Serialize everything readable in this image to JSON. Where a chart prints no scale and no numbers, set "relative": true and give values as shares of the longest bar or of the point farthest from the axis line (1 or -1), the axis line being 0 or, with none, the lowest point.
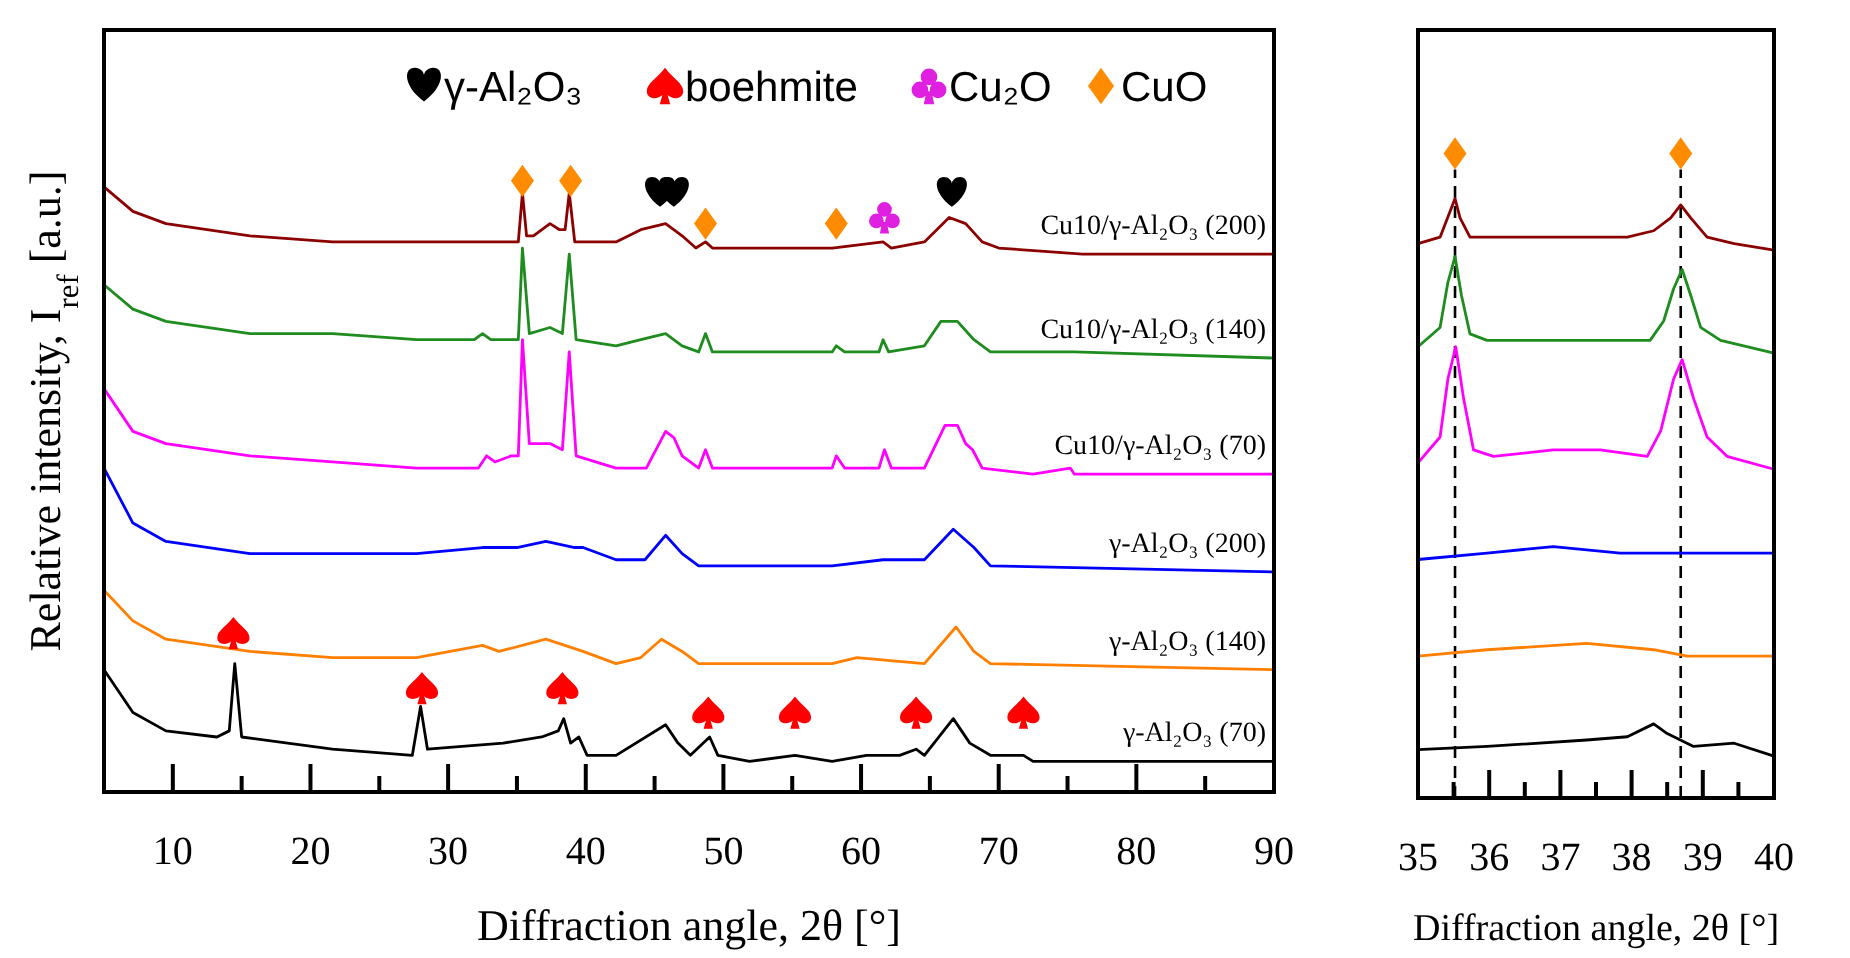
{
  "chart_data": [
    {
      "type": "line",
      "relative": true,
      "xlim": [
        5,
        90
      ],
      "xticks": [
        10,
        {
          "value": 15,
          "label": null
        },
        20,
        {
          "value": 25,
          "label": null
        },
        30,
        {
          "value": 35,
          "label": null
        },
        40,
        {
          "value": 45,
          "label": null
        },
        50,
        {
          "value": 55,
          "label": null
        },
        60,
        {
          "value": 65,
          "label": null
        },
        70,
        {
          "value": 75,
          "label": null
        },
        80,
        {
          "value": 85,
          "label": null
        },
        90
      ],
      "xlabel": "Diffraction angle,  2θ [°]",
      "ylabel": "Relative intensity, I$_{ref}$ [a.u.]",
      "legend": "top right",
      "grid": false,
      "series": [
        {
          "name": "Cu10/γ-Al₂O₃ (200)",
          "color": "#8b0000",
          "x": [
            5,
            7.1,
            9.5,
            15.6,
            21.6,
            27.7,
            32.5,
            34.6,
            35.1,
            35.4,
            35.7,
            36.2,
            37.4,
            38.1,
            38.5,
            38.8,
            39.2,
            42.2,
            44,
            45.8,
            47,
            48,
            48.7,
            49.2,
            57.9,
            61.6,
            62.2,
            64.6,
            66.4,
            67.6,
            68.8,
            70,
            76.1,
            90
          ],
          "values": [
            0.99,
            0.95,
            0.93,
            0.91,
            0.9,
            0.9,
            0.9,
            0.9,
            0.9,
            0.98,
            0.91,
            0.91,
            0.93,
            0.92,
            0.92,
            0.98,
            0.9,
            0.9,
            0.92,
            0.93,
            0.91,
            0.89,
            0.9,
            0.89,
            0.89,
            0.9,
            0.89,
            0.9,
            0.94,
            0.93,
            0.9,
            0.89,
            0.88,
            0.88
          ]
        },
        {
          "name": "Cu10/γ-Al₂O₃ (140)",
          "color": "#1e8c1e",
          "x": [
            5,
            7.1,
            9.5,
            15.6,
            21.6,
            27.7,
            31.9,
            32.5,
            33.1,
            34.6,
            35.1,
            35.4,
            35.9,
            37.4,
            38.3,
            38.8,
            39.3,
            42.2,
            44,
            45.8,
            47,
            48.2,
            48.7,
            49.2,
            53.1,
            53.6,
            54,
            57.9,
            58.2,
            58.8,
            61.3,
            61.6,
            62,
            64.6,
            65.8,
            67,
            68.2,
            69.4,
            72.5,
            75.5,
            90
          ],
          "values": [
            0.83,
            0.79,
            0.77,
            0.75,
            0.75,
            0.74,
            0.74,
            0.75,
            0.74,
            0.74,
            0.74,
            0.89,
            0.75,
            0.76,
            0.75,
            0.88,
            0.74,
            0.73,
            0.74,
            0.75,
            0.73,
            0.72,
            0.75,
            0.72,
            0.72,
            0.72,
            0.72,
            0.72,
            0.73,
            0.72,
            0.72,
            0.74,
            0.72,
            0.73,
            0.77,
            0.77,
            0.74,
            0.72,
            0.72,
            0.72,
            0.71
          ]
        },
        {
          "name": "Cu10/γ-Al₂O₃ (70)",
          "color": "#ff00ff",
          "x": [
            5,
            7.1,
            9.5,
            15.6,
            21.6,
            27.7,
            32.2,
            32.8,
            33.4,
            34.6,
            35.1,
            35.4,
            35.9,
            37.4,
            38.3,
            38.8,
            39.3,
            42.2,
            44.4,
            45.8,
            46.4,
            47,
            48.2,
            48.7,
            49.2,
            53.1,
            53.5,
            57.9,
            58.2,
            58.8,
            61.3,
            61.7,
            62.2,
            64.6,
            66.1,
            67,
            67.6,
            68.1,
            68.8,
            72.5,
            75.2,
            75.5,
            90
          ],
          "values": [
            0.66,
            0.59,
            0.57,
            0.55,
            0.54,
            0.53,
            0.53,
            0.55,
            0.54,
            0.55,
            0.55,
            0.74,
            0.57,
            0.57,
            0.56,
            0.72,
            0.55,
            0.53,
            0.53,
            0.59,
            0.58,
            0.55,
            0.53,
            0.56,
            0.53,
            0.53,
            0.53,
            0.53,
            0.55,
            0.53,
            0.53,
            0.56,
            0.53,
            0.53,
            0.6,
            0.6,
            0.57,
            0.56,
            0.53,
            0.52,
            0.53,
            0.52,
            0.52
          ]
        },
        {
          "name": "γ-Al₂O₃ (200)",
          "color": "#0000ff",
          "x": [
            5,
            7.1,
            9.5,
            15.6,
            21.6,
            27.7,
            32.5,
            35,
            37.1,
            39.2,
            39.8,
            42.2,
            44.3,
            45.8,
            47,
            48.2,
            57.9,
            61.6,
            64.6,
            66.7,
            68.2,
            69.4,
            90
          ],
          "values": [
            0.53,
            0.44,
            0.41,
            0.39,
            0.39,
            0.39,
            0.4,
            0.4,
            0.41,
            0.4,
            0.4,
            0.38,
            0.38,
            0.42,
            0.39,
            0.37,
            0.37,
            0.38,
            0.38,
            0.43,
            0.4,
            0.37,
            0.36
          ]
        },
        {
          "name": "γ-Al₂O₃ (140)",
          "color": "#ff8000",
          "x": [
            5,
            7.1,
            9.5,
            15.6,
            21.6,
            27.7,
            32.5,
            33.7,
            37.1,
            39.8,
            42.2,
            44,
            45.5,
            47,
            48.2,
            57.9,
            59.7,
            64.6,
            66.9,
            68.2,
            69.4,
            90
          ],
          "values": [
            0.33,
            0.28,
            0.25,
            0.23,
            0.22,
            0.22,
            0.24,
            0.23,
            0.25,
            0.23,
            0.21,
            0.22,
            0.25,
            0.23,
            0.21,
            0.21,
            0.22,
            0.21,
            0.27,
            0.23,
            0.21,
            0.2
          ]
        },
        {
          "name": "γ-Al₂O₃ (70)",
          "color": "#000000",
          "x": [
            5,
            7.1,
            9.5,
            13.2,
            14.1,
            14.5,
            15,
            21.6,
            27.4,
            28,
            28.5,
            34,
            36.8,
            38,
            38.4,
            38.9,
            39.5,
            40.1,
            42.2,
            45.8,
            46.7,
            47.6,
            49,
            49.6,
            51.9,
            55.2,
            57.9,
            60.4,
            62.8,
            64,
            64.6,
            66.7,
            67.9,
            69.4,
            71.8,
            72.5,
            90
          ],
          "values": [
            0.2,
            0.13,
            0.1,
            0.09,
            0.1,
            0.21,
            0.09,
            0.07,
            0.06,
            0.14,
            0.07,
            0.08,
            0.09,
            0.1,
            0.12,
            0.08,
            0.09,
            0.06,
            0.06,
            0.11,
            0.08,
            0.06,
            0.09,
            0.06,
            0.05,
            0.06,
            0.05,
            0.06,
            0.06,
            0.07,
            0.06,
            0.12,
            0.08,
            0.06,
            0.06,
            0.05,
            0.05
          ]
        },
        {
          "type": "scatter",
          "name": "γ-Al₂O₃",
          "color": "#000000",
          "x": [
            45.4,
            46.4,
            66.6
          ],
          "values": [
            0.98,
            0.98,
            0.98
          ]
        },
        {
          "type": "scatter",
          "name": "boehmite",
          "color": "#ff0000",
          "x": [
            14.4,
            28.1,
            38.3,
            48.9,
            55.2,
            64,
            71.8
          ],
          "values": [
            0.26,
            0.17,
            0.17,
            0.13,
            0.13,
            0.13,
            0.13
          ]
        },
        {
          "type": "scatter",
          "name": "Cu₂O",
          "color": "#e020e0",
          "x": [
            61.7
          ],
          "values": [
            0.94
          ]
        },
        {
          "type": "scatter",
          "name": "CuO",
          "marker": "diamond",
          "color": "#ff8c00",
          "x": [
            35.4,
            38.9,
            48.7,
            58.2
          ],
          "values": [
            1.0,
            1.0,
            0.93,
            0.93
          ]
        }
      ]
    },
    {
      "type": "line",
      "relative": true,
      "xlim": [
        35,
        40
      ],
      "xticks": [
        35,
        {
          "value": 35.5,
          "label": null
        },
        36,
        {
          "value": 36.5,
          "label": null
        },
        37,
        {
          "value": 37.5,
          "label": null
        },
        38,
        {
          "value": 38.5,
          "label": null
        },
        39,
        {
          "value": 39.5,
          "label": null
        },
        40
      ],
      "xlabel": "Diffraction angle,  2θ [°]",
      "grid": false,
      "ref_lines": [
        {
          "axis": "x",
          "value": 35.52,
          "color": "#000000",
          "line_style": "dashed"
        },
        {
          "axis": "x",
          "value": 38.69,
          "color": "#000000",
          "line_style": "dashed"
        }
      ],
      "series": [
        {
          "color": "#8b0000",
          "x": [
            35,
            35.31,
            35.45,
            35.52,
            35.59,
            35.73,
            36.06,
            36.44,
            36.9,
            37.37,
            37.94,
            38.31,
            38.55,
            38.69,
            38.83,
            39.06,
            39.44,
            40
          ],
          "values": [
            0.86,
            0.87,
            0.91,
            0.93,
            0.9,
            0.87,
            0.87,
            0.87,
            0.87,
            0.87,
            0.87,
            0.88,
            0.9,
            0.92,
            0.9,
            0.87,
            0.86,
            0.85
          ]
        },
        {
          "color": "#1e8c1e",
          "x": [
            35,
            35.31,
            35.42,
            35.52,
            35.61,
            35.73,
            35.97,
            36.9,
            37.84,
            38.26,
            38.45,
            38.59,
            38.71,
            38.83,
            38.97,
            39.25,
            40
          ],
          "values": [
            0.7,
            0.73,
            0.8,
            0.84,
            0.78,
            0.72,
            0.71,
            0.71,
            0.71,
            0.71,
            0.74,
            0.79,
            0.82,
            0.78,
            0.73,
            0.71,
            0.69
          ]
        },
        {
          "color": "#ff00ff",
          "x": [
            35,
            35.31,
            35.42,
            35.53,
            35.64,
            35.78,
            36.06,
            36.9,
            37.56,
            38.22,
            38.41,
            38.59,
            38.71,
            38.87,
            39.06,
            39.34,
            40
          ],
          "values": [
            0.52,
            0.56,
            0.65,
            0.7,
            0.62,
            0.54,
            0.53,
            0.54,
            0.54,
            0.53,
            0.57,
            0.65,
            0.68,
            0.62,
            0.56,
            0.53,
            0.51
          ]
        },
        {
          "color": "#0000ff",
          "x": [
            35,
            35.97,
            36.9,
            37.84,
            38.78,
            40
          ],
          "values": [
            0.37,
            0.38,
            0.39,
            0.38,
            0.38,
            0.38
          ]
        },
        {
          "color": "#ff8000",
          "x": [
            35,
            35.97,
            37.37,
            38.31,
            38.78,
            40
          ],
          "values": [
            0.22,
            0.23,
            0.24,
            0.23,
            0.22,
            0.22
          ]
        },
        {
          "color": "#000000",
          "x": [
            35,
            35.97,
            37.37,
            37.94,
            38.31,
            38.5,
            38.87,
            39.44,
            40
          ],
          "values": [
            0.075,
            0.08,
            0.09,
            0.095,
            0.115,
            0.1,
            0.08,
            0.085,
            0.065
          ]
        },
        {
          "type": "scatter",
          "marker": "diamond",
          "color": "#ff8c00",
          "x": [
            35.52,
            38.69
          ],
          "values": [
            1.0,
            1.0
          ]
        }
      ]
    }
  ]
}
